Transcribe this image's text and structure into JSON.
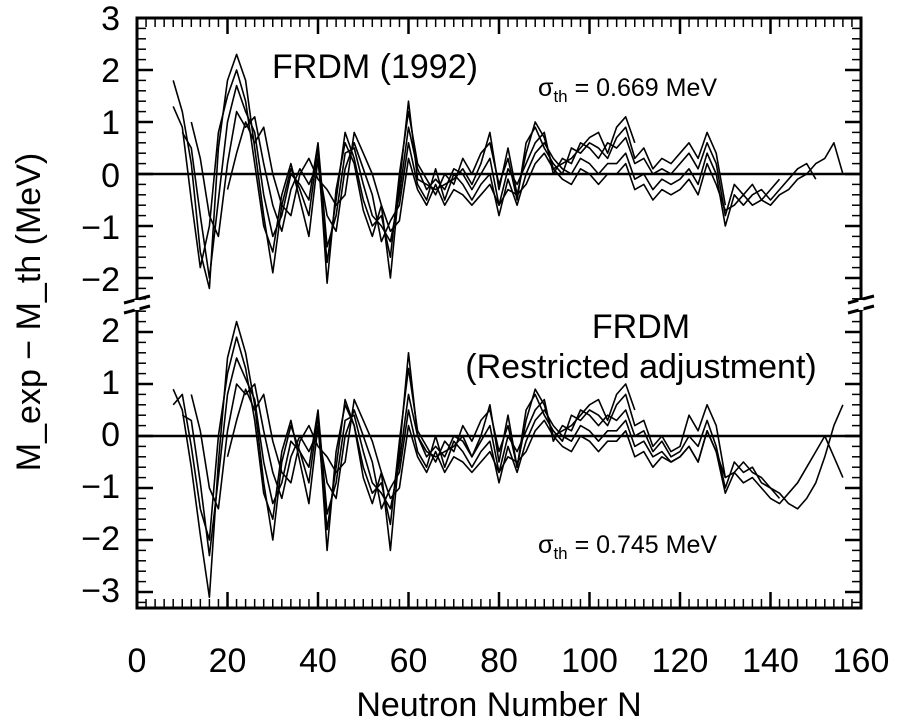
{
  "chart_data": {
    "type": "line",
    "xlabel": "Neutron Number N",
    "ylabel": "M_exp − M_th (MeV)",
    "xlim": [
      0,
      160
    ],
    "x_ticks": [
      "0",
      "20",
      "40",
      "60",
      "80",
      "100",
      "120",
      "140",
      "160"
    ],
    "x": [
      8,
      10,
      12,
      14,
      16,
      18,
      20,
      22,
      24,
      26,
      28,
      30,
      32,
      34,
      36,
      38,
      40,
      42,
      44,
      46,
      48,
      50,
      52,
      54,
      56,
      58,
      60,
      62,
      64,
      66,
      68,
      70,
      72,
      74,
      76,
      78,
      80,
      82,
      84,
      86,
      88,
      90,
      92,
      94,
      96,
      98,
      100,
      102,
      104,
      106,
      108,
      110,
      112,
      114,
      116,
      118,
      120,
      122,
      124,
      126,
      128,
      130,
      132,
      134,
      136,
      138,
      140,
      142,
      144,
      146,
      148,
      150,
      152,
      154,
      156
    ],
    "panels": [
      {
        "title": "FRDM (1992)",
        "sigma_label": "σ",
        "sigma_sub": "th",
        "sigma_value": " = 0.669 MeV",
        "ylim": [
          -2.5,
          3
        ],
        "y_ticks": [
          "3",
          "2",
          "1",
          "0",
          "−1",
          "−2"
        ],
        "series": [
          {
            "values": [
              1.8,
              1.2,
              0.2,
              -1.5,
              -2.2,
              0.5,
              1.8,
              2.3,
              1.8,
              0.5,
              -0.8,
              -1.9,
              -0.6,
              0.1,
              -0.3,
              -0.8,
              0.5,
              -2.1,
              -0.3,
              0.6,
              0.2,
              -0.7,
              -1.2,
              -0.6,
              -2.0,
              -0.2,
              1.4,
              -0.1,
              -0.2,
              -0.3,
              -0.2,
              -0.1,
              0.1,
              -0.2,
              0.2,
              0.8,
              -0.3,
              0.5,
              -0.4,
              0.4,
              1.0,
              0.7,
              0.1,
              0.2,
              0.3,
              0.5,
              0.7,
              0.8,
              0.4,
              0.9,
              1.1,
              0.6,
              null,
              null,
              null,
              null,
              null,
              null,
              null,
              null,
              null,
              null,
              null,
              null,
              null,
              null,
              null,
              null,
              null,
              null,
              null,
              null,
              null,
              null,
              null
            ]
          },
          {
            "values": [
              1.3,
              0.9,
              -0.5,
              -1.8,
              -1.0,
              0.8,
              1.5,
              2.0,
              1.4,
              0.2,
              -1.0,
              -1.5,
              -0.4,
              0.2,
              -0.5,
              -1.2,
              0.3,
              -1.7,
              -0.5,
              0.8,
              0.3,
              -0.5,
              -1.0,
              -0.8,
              -1.6,
              0.0,
              1.2,
              0.2,
              -0.1,
              -0.4,
              0.0,
              -0.2,
              0.3,
              0.0,
              0.4,
              0.6,
              -0.2,
              0.3,
              -0.5,
              0.6,
              0.9,
              0.5,
              0.2,
              0.0,
              0.5,
              0.4,
              0.6,
              0.5,
              0.3,
              0.7,
              0.9,
              0.3,
              0.5,
              0.1,
              0.3,
              0.2,
              0.4,
              0.6,
              0.3,
              0.8,
              0.4,
              -0.6,
              null,
              null,
              null,
              null,
              null,
              null,
              null,
              null,
              null,
              null,
              null,
              null,
              null
            ]
          },
          {
            "values": [
              null,
              0.8,
              0.5,
              -0.8,
              -2.0,
              -0.5,
              1.0,
              1.7,
              1.2,
              0.8,
              -0.4,
              -1.2,
              -0.8,
              0.0,
              -0.2,
              -0.5,
              0.6,
              -1.4,
              -0.8,
              0.4,
              0.5,
              -0.2,
              -0.8,
              -1.0,
              -1.3,
              -0.4,
              0.9,
              0.1,
              -0.3,
              -0.1,
              -0.3,
              0.1,
              0.0,
              -0.3,
              0.0,
              0.3,
              -0.6,
              0.1,
              -0.2,
              0.2,
              0.6,
              0.8,
              0.0,
              0.3,
              0.2,
              0.6,
              0.5,
              0.3,
              0.6,
              0.5,
              0.7,
              0.2,
              0.3,
              0.0,
              0.1,
              0.0,
              0.2,
              0.4,
              0.1,
              0.6,
              0.2,
              -0.8,
              -0.2,
              -0.4,
              -0.2,
              -0.5,
              -0.3,
              -0.1,
              null,
              null,
              null,
              null,
              null,
              null,
              null
            ]
          },
          {
            "values": [
              null,
              null,
              1.0,
              0.3,
              -0.8,
              -1.2,
              0.2,
              1.2,
              0.9,
              1.1,
              0.2,
              -0.6,
              -1.1,
              -0.3,
              0.1,
              -0.2,
              0.2,
              -0.8,
              -1.1,
              0.1,
              0.6,
              0.1,
              -0.4,
              -1.3,
              -0.9,
              -0.6,
              0.6,
              -0.2,
              -0.5,
              0.1,
              -0.5,
              0.0,
              -0.2,
              -0.5,
              -0.2,
              0.0,
              -0.8,
              -0.1,
              -0.6,
              0.0,
              0.4,
              0.6,
              0.3,
              0.1,
              0.0,
              0.3,
              0.2,
              0.0,
              0.2,
              0.2,
              0.4,
              -0.1,
              0.0,
              -0.3,
              -0.1,
              -0.2,
              -0.1,
              0.1,
              -0.2,
              0.4,
              0.0,
              -1.0,
              -0.4,
              -0.6,
              -0.4,
              -0.3,
              -0.5,
              -0.3,
              -0.1,
              0.1,
              0.2,
              -0.1,
              null,
              null,
              null
            ]
          },
          {
            "values": [
              null,
              null,
              null,
              null,
              null,
              null,
              -0.3,
              0.4,
              1.0,
              0.6,
              0.9,
              0.0,
              -0.6,
              -0.8,
              0.0,
              0.3,
              -0.1,
              -0.3,
              -0.6,
              -0.4,
              0.8,
              0.4,
              0.0,
              -0.6,
              -1.1,
              -0.9,
              0.3,
              -0.3,
              -0.6,
              -0.2,
              -0.6,
              -0.3,
              -0.4,
              -0.6,
              -0.4,
              -0.2,
              -0.6,
              -0.3,
              -0.4,
              -0.2,
              0.2,
              0.4,
              0.1,
              -0.1,
              -0.2,
              0.1,
              0.0,
              -0.2,
              0.0,
              0.0,
              0.2,
              -0.3,
              -0.2,
              -0.5,
              -0.3,
              -0.4,
              -0.3,
              -0.1,
              -0.4,
              0.2,
              -0.2,
              -0.7,
              -0.6,
              -0.4,
              -0.6,
              -0.5,
              -0.6,
              -0.4,
              -0.3,
              -0.1,
              0.0,
              0.2,
              0.3,
              0.6,
              0.0
            ]
          }
        ]
      },
      {
        "title": "FRDM",
        "subtitle": "(Restricted adjustment)",
        "sigma_label": "σ",
        "sigma_sub": "th",
        "sigma_value": " = 0.745 MeV",
        "ylim": [
          -3.3,
          2.5
        ],
        "y_ticks": [
          "2",
          "1",
          "0",
          "−1",
          "−2",
          "−3"
        ],
        "series": [
          {
            "values": [
              0.9,
              0.5,
              -0.6,
              -1.9,
              -3.1,
              -0.5,
              1.5,
              2.2,
              1.6,
              0.6,
              -0.9,
              -2.0,
              -0.5,
              0.2,
              -0.3,
              -0.9,
              0.4,
              -2.2,
              -0.3,
              0.6,
              0.2,
              -0.8,
              -1.3,
              -0.7,
              -2.2,
              -0.3,
              1.6,
              0.0,
              -0.3,
              -0.4,
              -0.3,
              -0.2,
              0.0,
              -0.4,
              0.0,
              0.6,
              -0.5,
              0.4,
              -0.6,
              0.3,
              0.9,
              0.6,
              0.0,
              0.1,
              0.2,
              0.4,
              0.6,
              0.7,
              0.3,
              0.8,
              1.0,
              0.5,
              null,
              null,
              null,
              null,
              null,
              null,
              null,
              null,
              null,
              null,
              null,
              null,
              null,
              null,
              null,
              null,
              null,
              null,
              null,
              null,
              null,
              null,
              null
            ]
          },
          {
            "values": [
              0.6,
              0.8,
              -0.2,
              -1.4,
              -2.0,
              0.0,
              1.2,
              1.9,
              1.3,
              0.3,
              -1.1,
              -1.6,
              -0.3,
              0.3,
              -0.5,
              -1.3,
              0.2,
              -1.8,
              -0.6,
              0.7,
              0.2,
              -0.6,
              -1.1,
              -0.9,
              -1.7,
              -0.1,
              1.3,
              0.1,
              -0.2,
              -0.5,
              -0.1,
              -0.3,
              0.2,
              -0.1,
              0.3,
              0.5,
              -0.3,
              0.2,
              -0.6,
              0.5,
              0.8,
              0.4,
              0.1,
              -0.1,
              0.4,
              0.3,
              0.5,
              0.4,
              0.2,
              0.6,
              0.8,
              0.2,
              0.3,
              -0.2,
              0.0,
              -0.3,
              -0.2,
              0.4,
              0.1,
              0.6,
              0.2,
              -0.8,
              null,
              null,
              null,
              null,
              null,
              null,
              null,
              null,
              null,
              null,
              null,
              null,
              null
            ]
          },
          {
            "values": [
              null,
              0.4,
              0.3,
              -0.9,
              -2.3,
              -0.8,
              0.8,
              1.5,
              1.1,
              0.7,
              -0.5,
              -1.3,
              -0.9,
              -0.1,
              -0.3,
              -0.6,
              0.5,
              -1.5,
              -0.9,
              0.3,
              0.4,
              -0.3,
              -0.9,
              -1.1,
              -1.4,
              -0.5,
              0.8,
              0.0,
              -0.4,
              -0.2,
              -0.4,
              0.0,
              -0.1,
              -0.4,
              -0.1,
              0.2,
              -0.7,
              0.0,
              -0.3,
              0.1,
              0.5,
              0.7,
              -0.1,
              0.2,
              0.1,
              0.5,
              0.4,
              0.2,
              0.4,
              0.3,
              0.5,
              0.0,
              0.1,
              -0.3,
              -0.1,
              -0.4,
              -0.3,
              0.0,
              -0.2,
              0.3,
              -0.2,
              -1.0,
              -0.5,
              -0.7,
              -0.6,
              -0.9,
              -1.0,
              -1.2,
              null,
              null,
              null,
              null,
              null,
              null,
              null
            ]
          },
          {
            "values": [
              null,
              null,
              0.8,
              0.1,
              -1.0,
              -1.4,
              0.1,
              1.0,
              0.8,
              1.0,
              0.1,
              -0.7,
              -1.2,
              -0.4,
              0.0,
              -0.3,
              0.1,
              -0.9,
              -1.2,
              0.0,
              0.5,
              0.0,
              -0.5,
              -1.4,
              -1.0,
              -0.7,
              0.5,
              -0.3,
              -0.6,
              0.0,
              -0.6,
              -0.1,
              -0.3,
              -0.6,
              -0.3,
              -0.1,
              -0.9,
              -0.2,
              -0.7,
              -0.1,
              0.3,
              0.5,
              0.2,
              0.0,
              -0.1,
              0.2,
              0.1,
              -0.1,
              0.1,
              0.1,
              0.3,
              -0.2,
              -0.1,
              -0.4,
              -0.3,
              -0.5,
              -0.4,
              -0.2,
              -0.5,
              0.1,
              -0.3,
              -1.1,
              -0.7,
              -0.9,
              -0.8,
              -1.0,
              -1.2,
              -1.3,
              -1.1,
              -0.9,
              -0.6,
              -0.3,
              0.0,
              -0.4,
              -0.8
            ]
          },
          {
            "values": [
              null,
              null,
              null,
              null,
              null,
              null,
              -0.4,
              0.3,
              0.9,
              0.5,
              0.8,
              -0.1,
              -0.7,
              -0.9,
              -0.1,
              0.2,
              -0.2,
              -0.4,
              -0.7,
              -0.5,
              0.7,
              0.3,
              -0.1,
              -0.7,
              -1.2,
              -1.0,
              0.2,
              -0.4,
              -0.7,
              -0.3,
              -0.7,
              -0.4,
              -0.5,
              -0.7,
              -0.5,
              -0.3,
              -0.7,
              -0.4,
              -0.5,
              -0.3,
              0.1,
              0.3,
              0.0,
              -0.2,
              -0.3,
              0.0,
              -0.1,
              -0.3,
              -0.1,
              -0.1,
              0.1,
              -0.4,
              -0.3,
              -0.6,
              -0.4,
              -0.5,
              -0.4,
              -0.2,
              -0.5,
              0.1,
              -0.3,
              -0.8,
              -0.7,
              -0.5,
              -0.7,
              -0.8,
              -1.0,
              -1.1,
              -1.3,
              -1.4,
              -1.2,
              -0.9,
              -0.4,
              0.2,
              0.6
            ]
          }
        ]
      }
    ]
  }
}
